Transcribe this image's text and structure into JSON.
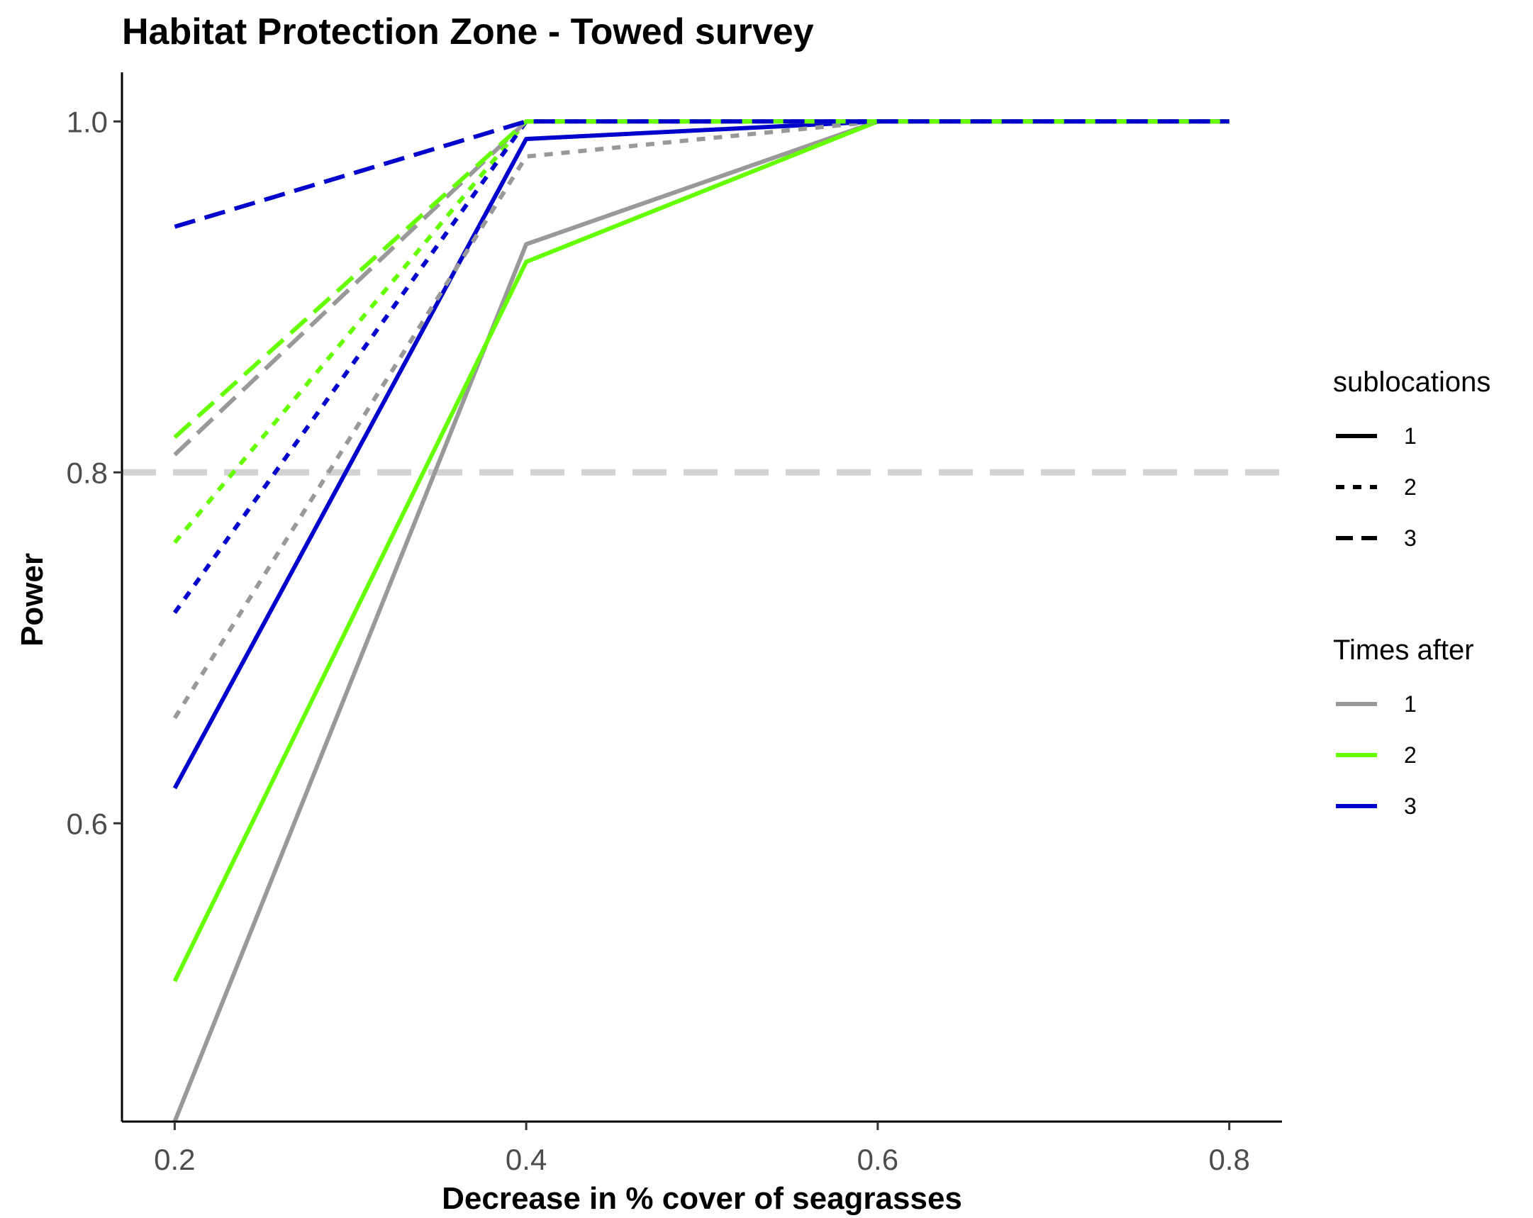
{
  "chart_data": {
    "type": "line",
    "title": "Habitat Protection Zone - Towed survey",
    "xlabel": "Decrease in % cover of seagrasses",
    "ylabel": "Power",
    "x": [
      0.2,
      0.4,
      0.6,
      0.8
    ],
    "x_ticks": [
      "0.2",
      "0.4",
      "0.6",
      "0.8"
    ],
    "y_ticks": [
      "0.6",
      "0.8",
      "1.0"
    ],
    "xlim": [
      0.17,
      0.83
    ],
    "ylim": [
      0.43,
      1.028
    ],
    "grid": false,
    "reference_line": {
      "y": 0.8,
      "color": "#d3d3d3",
      "style": "dashed"
    },
    "legend_position": "right",
    "legends": [
      {
        "title": "sublocations",
        "kind": "linetype",
        "entries": [
          {
            "label": "1",
            "style": "solid"
          },
          {
            "label": "2",
            "style": "dotted"
          },
          {
            "label": "3",
            "style": "dashed"
          }
        ]
      },
      {
        "title": "Times after",
        "kind": "color",
        "entries": [
          {
            "label": "1",
            "color": "#999999"
          },
          {
            "label": "2",
            "color": "#66ff00"
          },
          {
            "label": "3",
            "color": "#0000cc"
          }
        ]
      }
    ],
    "series": [
      {
        "sublocations": "1",
        "times_after": "1",
        "color": "#999999",
        "style": "solid",
        "values": [
          0.43,
          0.93,
          1.0,
          1.0
        ]
      },
      {
        "sublocations": "1",
        "times_after": "2",
        "color": "#66ff00",
        "style": "solid",
        "values": [
          0.51,
          0.92,
          1.0,
          1.0
        ]
      },
      {
        "sublocations": "1",
        "times_after": "3",
        "color": "#0000cc",
        "style": "solid",
        "values": [
          0.62,
          0.99,
          1.0,
          1.0
        ]
      },
      {
        "sublocations": "2",
        "times_after": "1",
        "color": "#999999",
        "style": "dotted",
        "values": [
          0.66,
          0.98,
          1.0,
          1.0
        ]
      },
      {
        "sublocations": "2",
        "times_after": "2",
        "color": "#66ff00",
        "style": "dotted",
        "values": [
          0.76,
          1.0,
          1.0,
          1.0
        ]
      },
      {
        "sublocations": "2",
        "times_after": "3",
        "color": "#0000cc",
        "style": "dotted",
        "values": [
          0.72,
          1.0,
          1.0,
          1.0
        ]
      },
      {
        "sublocations": "3",
        "times_after": "1",
        "color": "#999999",
        "style": "dashed",
        "values": [
          0.81,
          1.0,
          1.0,
          1.0
        ]
      },
      {
        "sublocations": "3",
        "times_after": "2",
        "color": "#66ff00",
        "style": "dashed",
        "values": [
          0.82,
          1.0,
          1.0,
          1.0
        ]
      },
      {
        "sublocations": "3",
        "times_after": "3",
        "color": "#0000cc",
        "style": "dashed",
        "values": [
          0.94,
          1.0,
          1.0,
          1.0
        ]
      }
    ]
  }
}
